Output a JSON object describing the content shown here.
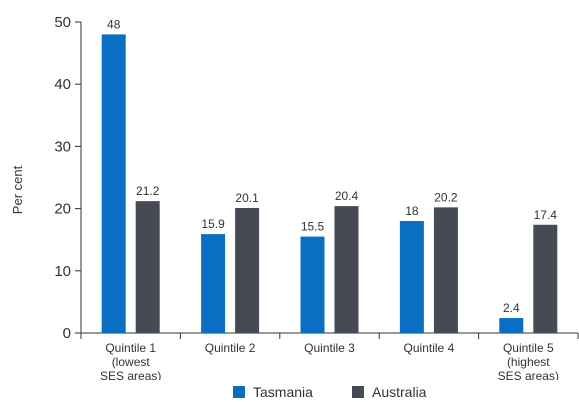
{
  "chart_data": {
    "type": "bar",
    "ylabel": "Per cent",
    "ylim": [
      0,
      50
    ],
    "yticks": [
      "0",
      "10",
      "20",
      "30",
      "40",
      "50"
    ],
    "categories": [
      [
        "Quintile 1",
        "(lowest",
        "SES areas)"
      ],
      [
        "Quintile 2"
      ],
      [
        "Quintile 3"
      ],
      [
        "Quintile 4"
      ],
      [
        "Quintile 5",
        "(highest",
        "SES areas)"
      ]
    ],
    "series": [
      {
        "name": "Tasmania",
        "color": "#0a6fc2",
        "values": [
          48,
          15.9,
          15.5,
          18,
          2.4
        ]
      },
      {
        "name": "Australia",
        "color": "#454a54",
        "values": [
          21.2,
          20.1,
          20.4,
          20.2,
          17.4
        ]
      }
    ],
    "grid": false,
    "legend": "bottom"
  },
  "legend": {
    "series_0": "Tasmania",
    "series_1": "Australia"
  }
}
